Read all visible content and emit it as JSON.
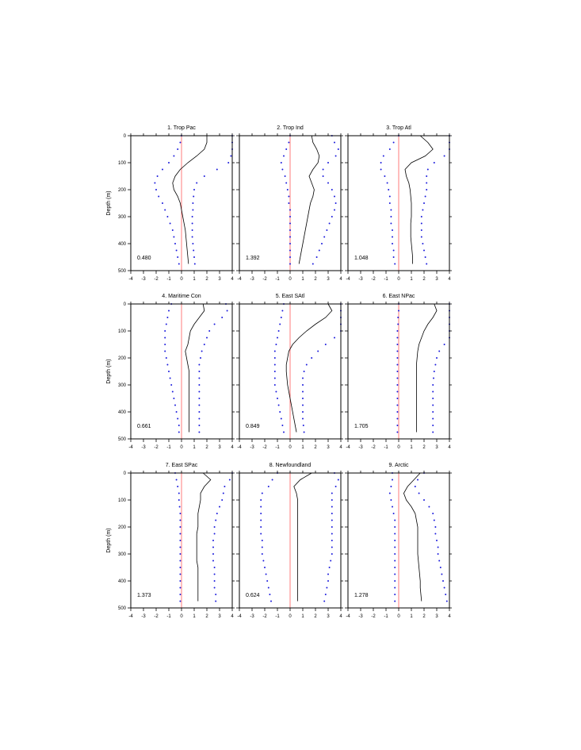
{
  "chart_data": {
    "type": "line",
    "panel_count": 9,
    "shared": {
      "ylabel": "Depth (m)",
      "xlim": [
        -4,
        4
      ],
      "ylim": [
        0,
        500
      ],
      "y_inverted": true,
      "xticks": [
        "-4",
        "-3",
        "-2",
        "-1",
        "0",
        "1",
        "2",
        "3",
        "4"
      ],
      "yticks": [
        "0",
        "100",
        "200",
        "300",
        "400",
        "500"
      ],
      "depth": [
        0,
        25,
        50,
        75,
        100,
        125,
        150,
        175,
        200,
        225,
        250,
        275,
        300,
        325,
        350,
        375,
        400,
        425,
        450,
        475
      ],
      "reference_line_x": 0,
      "colors": {
        "solid": "#000000",
        "dotted": "#1a1adc",
        "reference": "#ff5a5a"
      }
    },
    "panels": [
      {
        "title": "1. Trop Pac",
        "value": "0.480",
        "solid": [
          2.0,
          2.0,
          1.8,
          1.2,
          0.5,
          -0.1,
          -0.5,
          -0.7,
          -0.6,
          -0.3,
          -0.1,
          0.0,
          0.1,
          0.2,
          0.3,
          0.35,
          0.4,
          0.45,
          0.5,
          0.55
        ],
        "dotted_left": [
          0.0,
          -0.1,
          -0.3,
          -0.6,
          -1.0,
          -1.5,
          -1.9,
          -2.1,
          -2.0,
          -1.8,
          -1.5,
          -1.3,
          -1.1,
          -0.9,
          -0.7,
          -0.6,
          -0.5,
          -0.4,
          -0.3,
          -0.2
        ],
        "dotted_right": [
          4.0,
          4.0,
          4.0,
          3.9,
          3.7,
          2.8,
          1.8,
          1.2,
          1.0,
          0.95,
          0.9,
          0.9,
          0.85,
          0.85,
          0.85,
          0.85,
          0.9,
          0.95,
          1.0,
          1.05
        ]
      },
      {
        "title": "2. Trop Ind",
        "value": "1.392",
        "solid": [
          1.7,
          1.8,
          2.1,
          2.3,
          2.2,
          1.8,
          1.5,
          1.7,
          1.9,
          1.8,
          1.6,
          1.5,
          1.4,
          1.3,
          1.2,
          1.1,
          1.0,
          0.9,
          0.8,
          0.7
        ],
        "dotted_left": [
          0.0,
          -0.1,
          -0.3,
          -0.5,
          -0.7,
          -0.6,
          -0.4,
          -0.3,
          -0.2,
          -0.1,
          -0.1,
          0.0,
          0.0,
          0.0,
          0.0,
          0.0,
          0.0,
          0.0,
          0.0,
          0.0
        ],
        "dotted_right": [
          3.3,
          3.5,
          3.8,
          3.6,
          3.0,
          2.6,
          2.6,
          3.0,
          3.3,
          3.5,
          3.6,
          3.5,
          3.3,
          3.1,
          2.9,
          2.7,
          2.5,
          2.3,
          2.1,
          1.8
        ]
      },
      {
        "title": "3. Trop Atl",
        "value": "1.048",
        "solid": [
          1.7,
          2.3,
          2.7,
          2.1,
          1.0,
          0.5,
          0.6,
          0.8,
          0.9,
          0.95,
          1.0,
          1.0,
          1.0,
          0.95,
          0.95,
          0.95,
          1.0,
          1.05,
          1.1,
          1.1
        ],
        "dotted_left": [
          0.0,
          -0.4,
          -0.7,
          -1.2,
          -1.4,
          -1.4,
          -1.1,
          -0.9,
          -0.8,
          -0.7,
          -0.7,
          -0.6,
          -0.6,
          -0.6,
          -0.5,
          -0.5,
          -0.5,
          -0.4,
          -0.4,
          -0.3
        ],
        "dotted_right": [
          4.0,
          4.0,
          4.0,
          3.6,
          2.8,
          2.3,
          2.2,
          2.2,
          2.2,
          2.1,
          2.0,
          1.9,
          1.8,
          1.8,
          1.8,
          1.8,
          1.9,
          2.0,
          2.1,
          2.2
        ]
      },
      {
        "title": "4. Maritime Con",
        "value": "0.661",
        "solid": [
          1.7,
          1.8,
          1.4,
          1.0,
          0.7,
          0.6,
          0.5,
          0.3,
          0.4,
          0.5,
          0.6,
          0.6,
          0.6,
          0.6,
          0.6,
          0.6,
          0.6,
          0.6,
          0.6,
          0.6
        ],
        "dotted_left": [
          -0.8,
          -1.0,
          -1.1,
          -1.2,
          -1.3,
          -1.3,
          -1.3,
          -1.3,
          -1.2,
          -1.1,
          -1.0,
          -0.9,
          -0.8,
          -0.7,
          -0.6,
          -0.5,
          -0.4,
          -0.3,
          -0.2,
          -0.2
        ],
        "dotted_right": [
          3.5,
          3.6,
          3.2,
          2.6,
          2.2,
          2.0,
          1.8,
          1.6,
          1.5,
          1.4,
          1.4,
          1.4,
          1.4,
          1.4,
          1.4,
          1.4,
          1.4,
          1.4,
          1.4,
          1.4
        ]
      },
      {
        "title": "5. East SAtl",
        "value": "0.849",
        "solid": [
          3.0,
          3.3,
          2.8,
          2.0,
          1.3,
          0.7,
          0.2,
          -0.1,
          -0.2,
          -0.3,
          -0.3,
          -0.25,
          -0.2,
          -0.1,
          0.0,
          0.1,
          0.2,
          0.3,
          0.4,
          0.5
        ],
        "dotted_left": [
          -0.5,
          -0.6,
          -0.7,
          -0.8,
          -0.9,
          -1.0,
          -1.1,
          -1.2,
          -1.2,
          -1.2,
          -1.2,
          -1.2,
          -1.2,
          -1.1,
          -1.0,
          -0.9,
          -0.8,
          -0.7,
          -0.6,
          -0.5
        ],
        "dotted_right": [
          4.0,
          4.0,
          4.0,
          4.0,
          4.0,
          3.5,
          2.8,
          2.2,
          1.7,
          1.3,
          1.1,
          1.0,
          1.0,
          1.0,
          1.0,
          1.0,
          1.0,
          1.0,
          1.05,
          1.1
        ]
      },
      {
        "title": "6. East NPac",
        "value": "1.705",
        "solid": [
          2.8,
          3.0,
          2.7,
          2.3,
          2.0,
          1.8,
          1.6,
          1.5,
          1.45,
          1.4,
          1.4,
          1.4,
          1.4,
          1.4,
          1.4,
          1.4,
          1.4,
          1.4,
          1.4,
          1.4
        ],
        "dotted_left": [
          0.0,
          0.0,
          -0.05,
          -0.05,
          -0.1,
          -0.1,
          -0.1,
          -0.1,
          -0.1,
          -0.1,
          -0.1,
          -0.1,
          -0.1,
          -0.1,
          -0.1,
          -0.1,
          -0.1,
          -0.1,
          -0.1,
          -0.1
        ],
        "dotted_right": [
          4.0,
          4.0,
          4.0,
          4.0,
          4.0,
          4.0,
          3.6,
          3.2,
          3.0,
          2.9,
          2.8,
          2.75,
          2.7,
          2.7,
          2.7,
          2.7,
          2.7,
          2.7,
          2.7,
          2.7
        ]
      },
      {
        "title": "7. East SPac",
        "value": "1.373",
        "solid": [
          1.7,
          2.3,
          1.8,
          1.5,
          1.5,
          1.4,
          1.3,
          1.3,
          1.3,
          1.2,
          1.2,
          1.2,
          1.2,
          1.2,
          1.3,
          1.3,
          1.3,
          1.3,
          1.3,
          1.3
        ],
        "dotted_left": [
          -0.5,
          -0.4,
          -0.3,
          -0.2,
          -0.2,
          -0.15,
          -0.1,
          -0.1,
          -0.1,
          -0.1,
          -0.1,
          -0.1,
          -0.1,
          -0.1,
          -0.1,
          -0.1,
          -0.1,
          -0.1,
          -0.1,
          -0.1
        ],
        "dotted_right": [
          4.0,
          3.8,
          3.4,
          3.3,
          3.2,
          3.0,
          2.8,
          2.7,
          2.6,
          2.6,
          2.5,
          2.5,
          2.5,
          2.5,
          2.6,
          2.6,
          2.6,
          2.6,
          2.7,
          2.7
        ]
      },
      {
        "title": "8. Newfoundland",
        "value": "0.624",
        "solid": [
          1.7,
          0.8,
          0.3,
          0.5,
          0.6,
          0.6,
          0.6,
          0.6,
          0.6,
          0.6,
          0.6,
          0.6,
          0.6,
          0.6,
          0.6,
          0.6,
          0.6,
          0.6,
          0.6,
          0.6
        ],
        "dotted_left": [
          -1.0,
          -1.4,
          -1.7,
          -2.2,
          -2.3,
          -2.3,
          -2.3,
          -2.3,
          -2.3,
          -2.3,
          -2.2,
          -2.2,
          -2.2,
          -2.1,
          -2.0,
          -1.9,
          -1.8,
          -1.7,
          -1.6,
          -1.5
        ],
        "dotted_right": [
          3.5,
          3.8,
          3.6,
          3.3,
          3.3,
          3.3,
          3.3,
          3.3,
          3.3,
          3.3,
          3.3,
          3.3,
          3.3,
          3.2,
          3.1,
          3.0,
          3.0,
          2.9,
          2.8,
          2.7
        ]
      },
      {
        "title": "9. Arctic",
        "value": "1.278",
        "solid": [
          1.7,
          1.2,
          0.7,
          0.4,
          0.6,
          1.0,
          1.3,
          1.4,
          1.5,
          1.5,
          1.5,
          1.5,
          1.5,
          1.55,
          1.6,
          1.65,
          1.7,
          1.7,
          1.75,
          1.8
        ],
        "dotted_left": [
          -0.5,
          -0.5,
          -0.6,
          -0.7,
          -0.6,
          -0.5,
          -0.4,
          -0.3,
          -0.3,
          -0.3,
          -0.3,
          -0.3,
          -0.3,
          -0.3,
          -0.3,
          -0.3,
          -0.3,
          -0.3,
          -0.3,
          -0.3
        ],
        "dotted_right": [
          2.0,
          1.5,
          1.3,
          1.6,
          2.0,
          2.4,
          2.7,
          2.8,
          2.9,
          2.9,
          3.0,
          3.1,
          3.1,
          3.2,
          3.3,
          3.4,
          3.5,
          3.6,
          3.7,
          3.8
        ]
      }
    ]
  }
}
